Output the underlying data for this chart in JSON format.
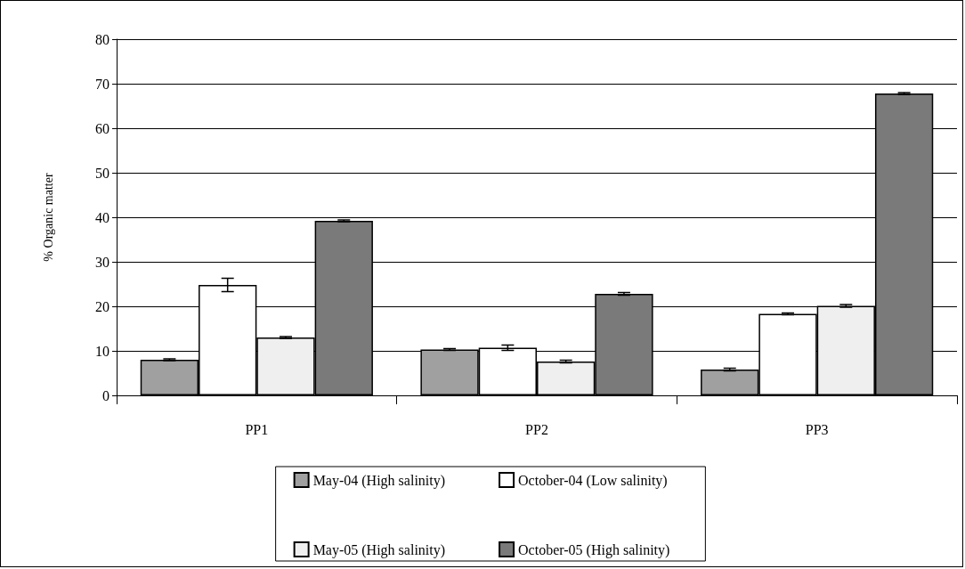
{
  "chart_data": {
    "type": "bar",
    "ylabel": "% Organic matter",
    "categories": [
      "PP1",
      "PP2",
      "PP3"
    ],
    "series": [
      {
        "name": "May-04 (High salinity)",
        "color": "#a0a0a0",
        "values": [
          8,
          10.3,
          5.8
        ],
        "errors": [
          0.2,
          0.2,
          0.3
        ]
      },
      {
        "name": "October-04 (Low salinity)",
        "color": "#ffffff",
        "values": [
          24.8,
          10.7,
          18.3
        ],
        "errors": [
          1.5,
          0.6,
          0.2
        ]
      },
      {
        "name": "May-05 (High salinity)",
        "color": "#efefef",
        "values": [
          13,
          7.6,
          20.1
        ],
        "errors": [
          0.2,
          0.3,
          0.3
        ]
      },
      {
        "name": "October-05 (High salinity)",
        "color": "#7a7a7a",
        "values": [
          39.2,
          22.8,
          67.8
        ],
        "errors": [
          0.2,
          0.3,
          0.2
        ]
      }
    ],
    "ylim": [
      0,
      80
    ],
    "yticks": [
      0,
      10,
      20,
      30,
      40,
      50,
      60,
      70,
      80
    ],
    "grid": "y",
    "legend": "bottom"
  }
}
